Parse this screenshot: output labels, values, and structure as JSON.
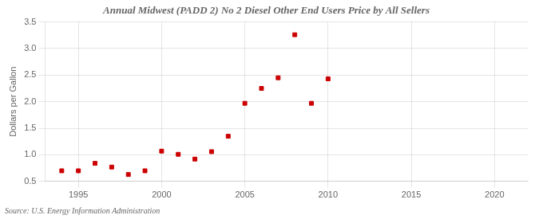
{
  "chart_data": {
    "type": "scatter",
    "title": "Annual Midwest (PADD 2) No 2 Diesel Other End Users Price by All Sellers",
    "ylabel": "Dollars per Gallon",
    "annotations": [
      "Source: U.S. Energy Information Administration"
    ],
    "x": [
      1994,
      1995,
      1996,
      1997,
      1998,
      1999,
      2000,
      2001,
      2002,
      2003,
      2004,
      2005,
      2006,
      2007,
      2008,
      2009,
      2010
    ],
    "values": [
      0.7,
      0.7,
      0.84,
      0.77,
      0.63,
      0.7,
      1.07,
      1.01,
      0.92,
      1.06,
      1.35,
      1.97,
      2.25,
      2.45,
      3.26,
      1.97,
      2.43
    ],
    "color": "#cc0000",
    "marker": "square",
    "xlim": [
      1993,
      2022
    ],
    "xticks": [
      1995,
      2000,
      2005,
      2010,
      2015,
      2020
    ],
    "ylim": [
      0.5,
      3.5
    ],
    "yticks": [
      0.5,
      {
        "value": 1,
        "label": "1.0"
      },
      1.5,
      {
        "value": 2,
        "label": "2.0"
      },
      2.5,
      {
        "value": 3,
        "label": "3.0"
      },
      3.5
    ],
    "grid": true
  }
}
